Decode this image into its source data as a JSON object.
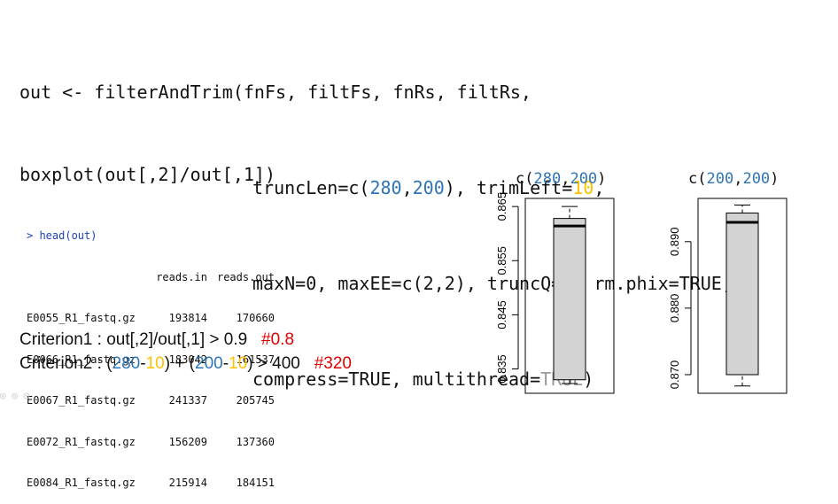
{
  "code": {
    "line1": {
      "a": "out <- filterAndTrim(fnFs, filtFs, fnRs, filtRs,"
    },
    "line2": {
      "a": "truncLen=c(",
      "v1": "280",
      "c1": ",",
      "v2": "200",
      "b": "), trimLeft=",
      "v3": "10",
      "c": ","
    },
    "line3": {
      "a": "maxN=0, maxEE=c(2,2), truncQ=",
      "v1": "2",
      "b": ", rm.phix=TRUE,"
    },
    "line4": {
      "a": "compress=TRUE, multithread=",
      "v1": "TRUE",
      "b": ")"
    }
  },
  "boxplot_cmd": "boxplot(out[,2]/out[,1])",
  "console": {
    "prompt": "> head(out)",
    "headers": [
      "",
      "reads.in",
      "reads.out"
    ],
    "rows": [
      [
        "E0055_R1_fastq.gz",
        "193814",
        "170660"
      ],
      [
        "E0066_R1_fastq.gz",
        "183042",
        "161537"
      ],
      [
        "E0067_R1_fastq.gz",
        "241337",
        "205745"
      ],
      [
        "E0072_R1_fastq.gz",
        "156209",
        "137360"
      ],
      [
        "E0084_R1_fastq.gz",
        "215914",
        "184151"
      ]
    ]
  },
  "criterion1": {
    "text": "Criterion1 : out[,2]/out[,1] > 0.9",
    "note": "#0.8"
  },
  "criterion2": {
    "p1": "Criterion2 : (",
    "a1": "280",
    "m1": "-",
    "b1": "10",
    "p2": ") + (",
    "a2": "200",
    "m2": "-",
    "b2": "10",
    "p3": ") > 400",
    "note": "#320"
  },
  "colors": {
    "blue": "#2e75b6",
    "orange": "#ffc000",
    "red": "#e00000",
    "gray": "#999999",
    "box_fill": "#d3d3d3"
  },
  "plot1_title": {
    "pre": "c(",
    "v1": "280",
    "comma": ",",
    "v2": "200",
    "post": ")"
  },
  "plot2_title": {
    "pre": "c(",
    "v1": "200",
    "comma": ",",
    "v2": "200",
    "post": ")"
  },
  "chart_data": [
    {
      "type": "box",
      "ticks": [
        0.835,
        0.845,
        0.855,
        0.865
      ],
      "tick_labels": [
        "0.835",
        "0.845",
        "0.855",
        "0.865"
      ],
      "ylim": [
        0.8305,
        0.8665
      ],
      "box": {
        "whisker_low": 0.8323,
        "q1": 0.833,
        "median": 0.8614,
        "q3": 0.8628,
        "whisker_high": 0.865
      }
    },
    {
      "type": "box",
      "ticks": [
        0.87,
        0.88,
        0.89
      ],
      "tick_labels": [
        "0.870",
        "0.880",
        "0.890"
      ],
      "ylim": [
        0.8672,
        0.8965
      ],
      "box": {
        "whisker_low": 0.8683,
        "q1": 0.87,
        "median": 0.8929,
        "q3": 0.8943,
        "whisker_high": 0.8955
      }
    }
  ]
}
